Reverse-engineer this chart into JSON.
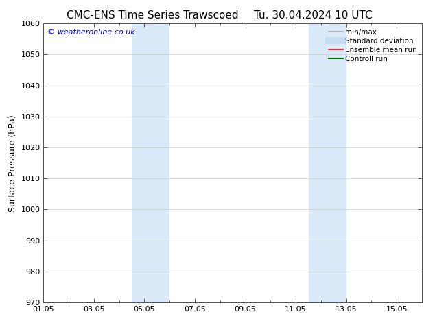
{
  "title_left": "CMC-ENS Time Series Trawscoed",
  "title_right": "Tu. 30.04.2024 10 UTC",
  "ylabel": "Surface Pressure (hPa)",
  "ylim": [
    970,
    1060
  ],
  "yticks": [
    970,
    980,
    990,
    1000,
    1010,
    1020,
    1030,
    1040,
    1050,
    1060
  ],
  "xlim": [
    0,
    15
  ],
  "xtick_major_positions": [
    0,
    2,
    4,
    6,
    8,
    10,
    12,
    14
  ],
  "xtick_major_labels": [
    "01.05",
    "03.05",
    "05.05",
    "07.05",
    "09.05",
    "11.05",
    "13.05",
    "15.05"
  ],
  "xtick_minor_positions": [
    0,
    1,
    2,
    3,
    4,
    5,
    6,
    7,
    8,
    9,
    10,
    11,
    12,
    13,
    14,
    15
  ],
  "shaded_bands": [
    {
      "x_start": 3.5,
      "x_end": 5.0,
      "color": "#daeaf8"
    },
    {
      "x_start": 10.5,
      "x_end": 12.0,
      "color": "#daeaf8"
    }
  ],
  "watermark": "© weatheronline.co.uk",
  "watermark_color": "#0000cc",
  "legend_items": [
    {
      "label": "min/max",
      "color": "#aaaaaa",
      "lw": 1.2
    },
    {
      "label": "Standard deviation",
      "color": "#c5ddef",
      "lw": 7
    },
    {
      "label": "Ensemble mean run",
      "color": "#ff0000",
      "lw": 1.2
    },
    {
      "label": "Controll run",
      "color": "#007700",
      "lw": 1.5
    }
  ],
  "bg_color": "#ffffff",
  "plot_bg_color": "#ffffff",
  "title_fontsize": 11,
  "label_fontsize": 9,
  "tick_fontsize": 8,
  "legend_fontsize": 7.5
}
